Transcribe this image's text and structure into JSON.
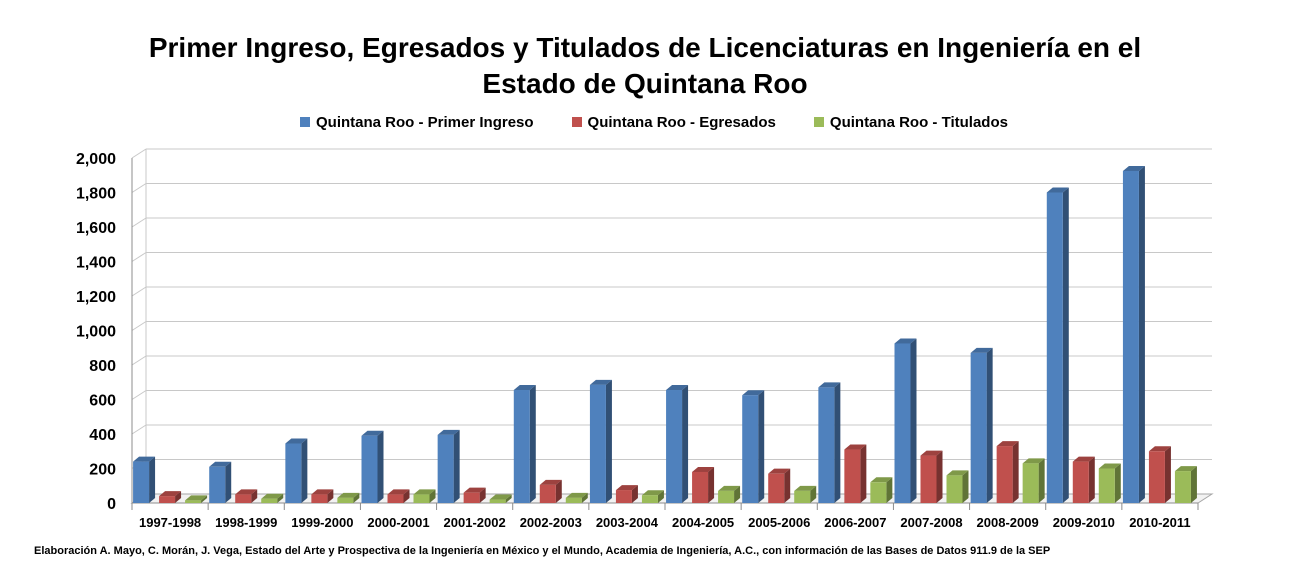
{
  "chart_data": {
    "type": "bar",
    "title": "Primer Ingreso, Egresados y Titulados de Licenciaturas en Ingeniería en el Estado de Quintana Roo",
    "title_line1": "Primer Ingreso, Egresados y Titulados de Licenciaturas en Ingeniería en el",
    "title_line2": "Estado de Quintana Roo",
    "xlabel": "",
    "ylabel": "",
    "ylim": [
      0,
      2000
    ],
    "yticks": [
      0,
      200,
      400,
      600,
      800,
      1000,
      1200,
      1400,
      1600,
      1800,
      2000
    ],
    "ytick_labels": [
      "0",
      "200",
      "400",
      "600",
      "800",
      "1,000",
      "1,200",
      "1,400",
      "1,600",
      "1,800",
      "2,000"
    ],
    "grid": true,
    "legend_position": "top",
    "categories": [
      "1997-1998",
      "1998-1999",
      "1999-2000",
      "2000-2001",
      "2001-2002",
      "2002-2003",
      "2003-2004",
      "2004-2005",
      "2005-2006",
      "2006-2007",
      "2007-2008",
      "2008-2009",
      "2009-2010",
      "2010-2011"
    ],
    "series": [
      {
        "name": "Quintana Roo - Primer Ingreso",
        "color": "#4F81BD",
        "values": [
          240,
          210,
          345,
          390,
          395,
          655,
          685,
          655,
          625,
          670,
          925,
          870,
          1800,
          1925
        ]
      },
      {
        "name": "Quintana Roo - Egresados",
        "color": "#C0504D",
        "values": [
          40,
          50,
          50,
          50,
          60,
          105,
          75,
          180,
          170,
          310,
          275,
          330,
          240,
          300
        ]
      },
      {
        "name": "Quintana Roo - Titulados",
        "color": "#9BBB59",
        "values": [
          15,
          25,
          30,
          50,
          20,
          30,
          45,
          70,
          70,
          120,
          160,
          230,
          200,
          185
        ]
      }
    ]
  },
  "source": "Elaboración A. Mayo, C. Morán, J. Vega, Estado del Arte y Prospectiva de la Ingeniería en México y el Mundo, Academia de Ingeniería, A.C., con información de las Bases de Datos  911.9  de la SEP"
}
